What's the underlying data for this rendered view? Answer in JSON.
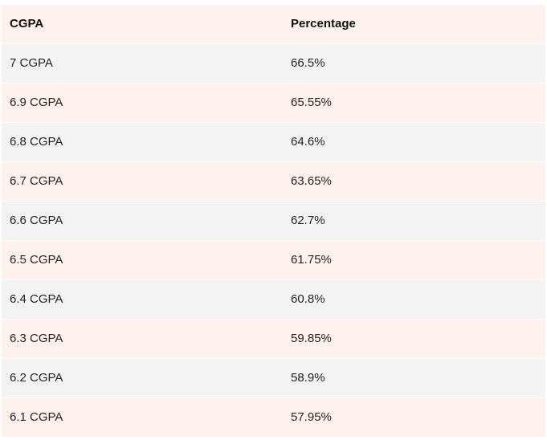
{
  "table": {
    "headers": {
      "cgpa": "CGPA",
      "percentage": "Percentage"
    },
    "rows": [
      {
        "cgpa": "7 CGPA",
        "percentage": "66.5%"
      },
      {
        "cgpa": "6.9 CGPA",
        "percentage": "65.55%"
      },
      {
        "cgpa": "6.8 CGPA",
        "percentage": "64.6%"
      },
      {
        "cgpa": "6.7 CGPA",
        "percentage": "63.65%"
      },
      {
        "cgpa": "6.6 CGPA",
        "percentage": "62.7%"
      },
      {
        "cgpa": "6.5 CGPA",
        "percentage": "61.75%"
      },
      {
        "cgpa": "6.4 CGPA",
        "percentage": "60.8%"
      },
      {
        "cgpa": "6.3 CGPA",
        "percentage": "59.85%"
      },
      {
        "cgpa": "6.2 CGPA",
        "percentage": "58.9%"
      },
      {
        "cgpa": "6.1 CGPA",
        "percentage": "57.95%"
      }
    ]
  },
  "colors": {
    "header_row": "#fff1ee",
    "odd_row": "#f3f3f3",
    "even_row": "#fff1ee",
    "text": "#222222"
  }
}
